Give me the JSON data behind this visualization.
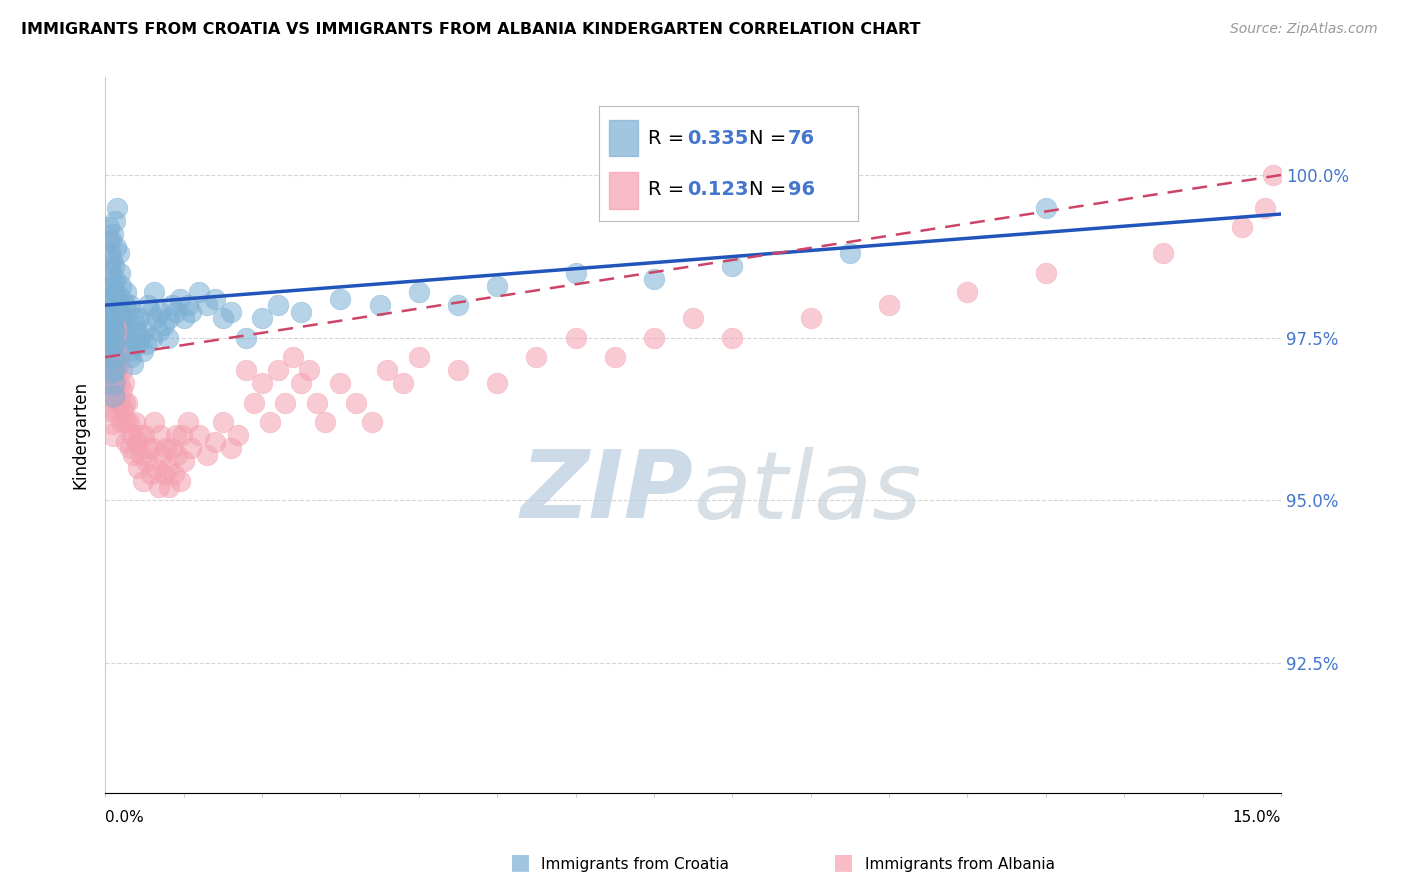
{
  "title": "IMMIGRANTS FROM CROATIA VS IMMIGRANTS FROM ALBANIA KINDERGARTEN CORRELATION CHART",
  "source": "Source: ZipAtlas.com",
  "ylabel": "Kindergarten",
  "ytick_labels": [
    "92.5%",
    "95.0%",
    "97.5%",
    "100.0%"
  ],
  "ytick_values": [
    92.5,
    95.0,
    97.5,
    100.0
  ],
  "xlim": [
    0.0,
    15.0
  ],
  "ylim": [
    90.5,
    101.5
  ],
  "legend_R1": "0.335",
  "legend_N1": "76",
  "legend_R2": "0.123",
  "legend_N2": "96",
  "color_croatia": "#7BAFD4",
  "color_albania": "#F4A0B0",
  "watermark_text": "ZIPatlas",
  "croatia_trend": [
    98.0,
    99.4
  ],
  "albania_trend": [
    97.2,
    100.0
  ],
  "croatia_x": [
    0.05,
    0.06,
    0.07,
    0.08,
    0.09,
    0.1,
    0.1,
    0.11,
    0.12,
    0.12,
    0.13,
    0.14,
    0.15,
    0.15,
    0.16,
    0.17,
    0.18,
    0.19,
    0.2,
    0.2,
    0.21,
    0.22,
    0.23,
    0.25,
    0.26,
    0.27,
    0.28,
    0.3,
    0.31,
    0.32,
    0.33,
    0.35,
    0.36,
    0.38,
    0.4,
    0.42,
    0.43,
    0.45,
    0.48,
    0.5,
    0.52,
    0.55,
    0.58,
    0.6,
    0.62,
    0.65,
    0.68,
    0.7,
    0.75,
    0.8,
    0.82,
    0.85,
    0.9,
    0.95,
    1.0,
    1.05,
    1.1,
    1.2,
    1.3,
    1.4,
    1.5,
    1.6,
    1.8,
    2.0,
    2.2,
    2.5,
    3.0,
    3.5,
    4.0,
    4.5,
    5.0,
    6.0,
    7.0,
    8.0,
    9.5,
    12.0
  ],
  "croatia_y": [
    99.2,
    98.8,
    99.0,
    98.5,
    98.7,
    98.3,
    99.1,
    98.6,
    98.4,
    99.3,
    98.2,
    98.9,
    98.1,
    99.5,
    98.0,
    98.8,
    97.9,
    98.5,
    97.8,
    98.3,
    97.7,
    98.1,
    97.6,
    98.0,
    97.5,
    98.2,
    97.4,
    97.9,
    97.3,
    98.0,
    97.2,
    97.8,
    97.1,
    97.7,
    97.6,
    97.4,
    97.8,
    97.5,
    97.3,
    97.6,
    97.4,
    98.0,
    97.9,
    97.5,
    98.2,
    97.8,
    97.6,
    97.9,
    97.7,
    97.5,
    97.8,
    98.0,
    97.9,
    98.1,
    97.8,
    98.0,
    97.9,
    98.2,
    98.0,
    98.1,
    97.8,
    97.9,
    97.5,
    97.8,
    98.0,
    97.9,
    98.1,
    98.0,
    98.2,
    98.0,
    98.3,
    98.5,
    98.4,
    98.6,
    98.8,
    99.5
  ],
  "albania_x": [
    0.05,
    0.06,
    0.07,
    0.08,
    0.09,
    0.1,
    0.11,
    0.12,
    0.13,
    0.14,
    0.15,
    0.16,
    0.17,
    0.18,
    0.19,
    0.2,
    0.21,
    0.22,
    0.23,
    0.24,
    0.25,
    0.26,
    0.27,
    0.28,
    0.3,
    0.32,
    0.34,
    0.36,
    0.38,
    0.4,
    0.42,
    0.44,
    0.46,
    0.48,
    0.5,
    0.52,
    0.55,
    0.58,
    0.6,
    0.62,
    0.65,
    0.68,
    0.7,
    0.72,
    0.75,
    0.78,
    0.8,
    0.82,
    0.85,
    0.88,
    0.9,
    0.92,
    0.95,
    0.98,
    1.0,
    1.05,
    1.1,
    1.2,
    1.3,
    1.4,
    1.5,
    1.6,
    1.7,
    1.8,
    1.9,
    2.0,
    2.1,
    2.2,
    2.3,
    2.4,
    2.5,
    2.6,
    2.7,
    2.8,
    3.0,
    3.2,
    3.4,
    3.6,
    3.8,
    4.0,
    4.5,
    5.0,
    5.5,
    6.0,
    6.5,
    7.0,
    7.5,
    8.0,
    9.0,
    10.0,
    11.0,
    12.0,
    13.5,
    14.5,
    14.8,
    14.9
  ],
  "albania_y": [
    99.0,
    98.6,
    98.2,
    97.8,
    97.4,
    97.0,
    97.5,
    97.2,
    97.8,
    97.4,
    97.0,
    97.5,
    97.2,
    96.8,
    96.5,
    96.2,
    97.0,
    96.7,
    96.4,
    96.8,
    96.5,
    96.2,
    95.9,
    96.5,
    96.2,
    95.8,
    96.0,
    95.7,
    96.2,
    95.9,
    95.5,
    96.0,
    95.7,
    95.3,
    96.0,
    95.6,
    95.8,
    95.4,
    95.8,
    96.2,
    95.5,
    95.2,
    96.0,
    95.7,
    95.4,
    95.8,
    95.5,
    95.2,
    95.8,
    95.4,
    96.0,
    95.7,
    95.3,
    96.0,
    95.6,
    96.2,
    95.8,
    96.0,
    95.7,
    95.9,
    96.2,
    95.8,
    96.0,
    97.0,
    96.5,
    96.8,
    96.2,
    97.0,
    96.5,
    97.2,
    96.8,
    97.0,
    96.5,
    96.2,
    96.8,
    96.5,
    96.2,
    97.0,
    96.8,
    97.2,
    97.0,
    96.8,
    97.2,
    97.5,
    97.2,
    97.5,
    97.8,
    97.5,
    97.8,
    98.0,
    98.2,
    98.5,
    98.8,
    99.2,
    99.5,
    100.0
  ],
  "croatia_cluster_x": [
    0.04,
    0.05,
    0.05,
    0.06,
    0.06,
    0.07,
    0.07,
    0.08,
    0.08,
    0.09,
    0.09,
    0.09,
    0.1,
    0.1,
    0.1,
    0.11,
    0.11,
    0.11
  ],
  "croatia_cluster_y": [
    98.0,
    97.8,
    98.2,
    97.6,
    98.0,
    97.4,
    97.8,
    97.2,
    97.6,
    97.0,
    97.4,
    97.8,
    96.8,
    97.2,
    97.6,
    96.6,
    97.0,
    97.4
  ],
  "croatia_cluster_s": [
    600,
    500,
    450,
    450,
    400,
    400,
    380,
    380,
    360,
    360,
    340,
    300,
    300,
    280,
    260,
    260,
    240,
    220
  ],
  "albania_cluster_x": [
    0.04,
    0.05,
    0.05,
    0.06,
    0.06,
    0.07,
    0.07,
    0.08,
    0.08,
    0.09,
    0.09,
    0.1,
    0.1,
    0.11,
    0.11
  ],
  "albania_cluster_y": [
    97.6,
    97.3,
    97.7,
    97.0,
    97.4,
    96.8,
    97.2,
    96.6,
    97.0,
    96.4,
    96.8,
    96.2,
    96.6,
    96.0,
    96.4
  ],
  "albania_cluster_s": [
    700,
    600,
    550,
    500,
    480,
    450,
    420,
    400,
    380,
    360,
    340,
    320,
    300,
    280,
    260
  ]
}
